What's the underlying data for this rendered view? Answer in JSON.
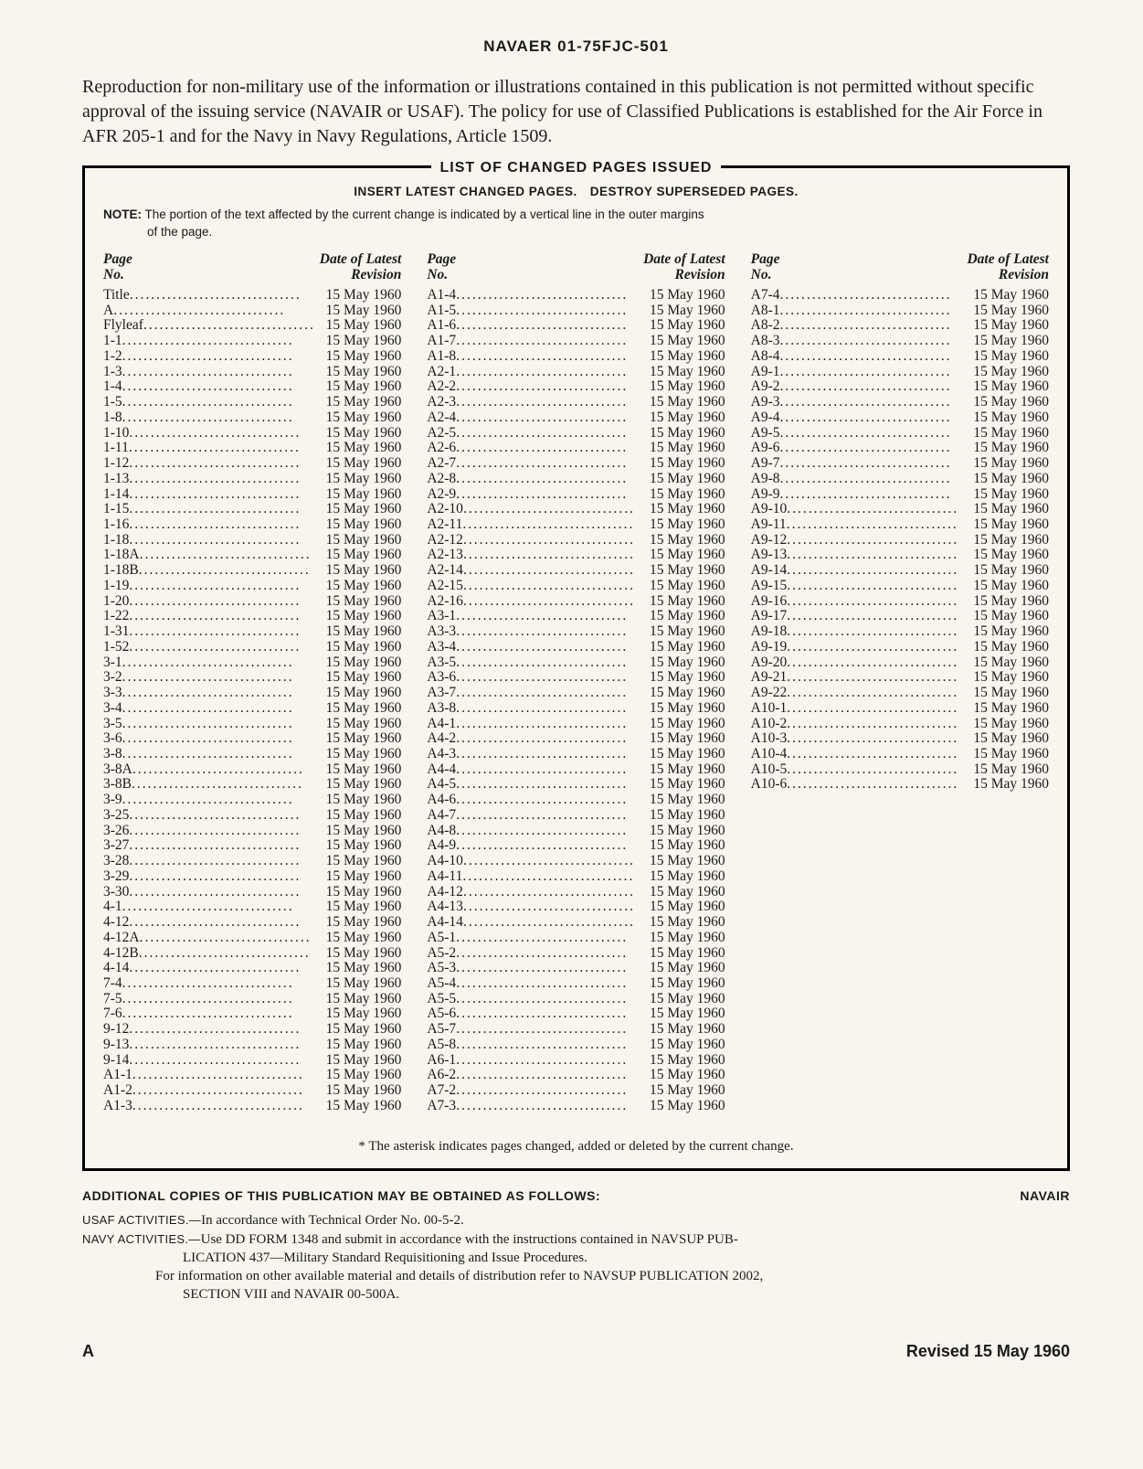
{
  "header": "NAVAER 01-75FJC-501",
  "intro": "Reproduction for non-military use of the information or illustrations contained in this publication is not permitted without specific approval of the issuing service (NAVAIR or USAF). The policy for use of Classified Publications is established for the Air Force in AFR 205-1 and for the Navy in Navy Regulations, Article 1509.",
  "box_title": "LIST OF CHANGED PAGES ISSUED",
  "insert_line": "INSERT LATEST CHANGED PAGES. DESTROY SUPERSEDED PAGES.",
  "note_label": "NOTE:",
  "note_text_1": "The portion of the text affected by the current change is indicated by a vertical line in the outer margins",
  "note_text_2": "of the page.",
  "col_head_left_1": "Page",
  "col_head_left_2": "No.",
  "col_head_right_1": "Date of Latest",
  "col_head_right_2": "Revision",
  "revision_date": "15 May 1960",
  "col1_pages": [
    "Title",
    "A",
    "Flyleaf",
    "1-1",
    "1-2",
    "1-3",
    "1-4",
    "1-5",
    "1-8",
    "1-10",
    "1-11",
    "1-12",
    "1-13",
    "1-14",
    "1-15",
    "1-16",
    "1-18",
    "1-18A",
    "1-18B",
    "1-19",
    "1-20",
    "1-22",
    "1-31",
    "1-52",
    "3-1",
    "3-2",
    "3-3",
    "3-4",
    "3-5",
    "3-6",
    "3-8",
    "3-8A",
    "3-8B",
    "3-9",
    "3-25",
    "3-26",
    "3-27",
    "3-28",
    "3-29",
    "3-30",
    "4-1",
    "4-12",
    "4-12A",
    "4-12B",
    "4-14",
    "7-4",
    "7-5",
    "7-6",
    "9-12",
    "9-13",
    "9-14",
    "A1-1",
    "A1-2",
    "A1-3"
  ],
  "col2_pages": [
    "A1-4",
    "A1-5",
    "A1-6",
    "A1-7",
    "A1-8",
    "A2-1",
    "A2-2",
    "A2-3",
    "A2-4",
    "A2-5",
    "A2-6",
    "A2-7",
    "A2-8",
    "A2-9",
    "A2-10",
    "A2-11",
    "A2-12",
    "A2-13",
    "A2-14",
    "A2-15",
    "A2-16",
    "A3-1",
    "A3-3",
    "A3-4",
    "A3-5",
    "A3-6",
    "A3-7",
    "A3-8",
    "A4-1",
    "A4-2",
    "A4-3",
    "A4-4",
    "A4-5",
    "A4-6",
    "A4-7",
    "A4-8",
    "A4-9",
    "A4-10",
    "A4-11",
    "A4-12",
    "A4-13",
    "A4-14",
    "A5-1",
    "A5-2",
    "A5-3",
    "A5-4",
    "A5-5",
    "A5-6",
    "A5-7",
    "A5-8",
    "A6-1",
    "A6-2",
    "A7-2",
    "A7-3"
  ],
  "col3_pages": [
    "A7-4",
    "A8-1",
    "A8-2",
    "A8-3",
    "A8-4",
    "A9-1",
    "A9-2",
    "A9-3",
    "A9-4",
    "A9-5",
    "A9-6",
    "A9-7",
    "A9-8",
    "A9-9",
    "A9-10",
    "A9-11",
    "A9-12",
    "A9-13",
    "A9-14",
    "A9-15",
    "A9-16",
    "A9-17",
    "A9-18",
    "A9-19",
    "A9-20",
    "A9-21",
    "A9-22",
    "A10-1",
    "A10-2",
    "A10-3",
    "A10-4",
    "A10-5",
    "A10-6"
  ],
  "asterisk_note": "* The asterisk indicates pages changed, added or deleted by the current change.",
  "addl_heading": "ADDITIONAL COPIES OF THIS PUBLICATION MAY BE OBTAINED AS FOLLOWS:",
  "addl_right": "NAVAIR",
  "usaf_label": "USAF ACTIVITIES.—",
  "usaf_text": "In accordance with Technical Order No. 00-5-2.",
  "navy_label": "NAVY ACTIVITIES.—",
  "navy_text_1": "Use DD FORM 1348 and submit in accordance with the instructions contained in NAVSUP PUB-",
  "navy_text_2": "LICATION 437—Military Standard Requisitioning and Issue Procedures.",
  "navy_text_3": "For information on other available material and details of distribution refer to NAVSUP PUBLICATION 2002,",
  "navy_text_4": "SECTION VIII and NAVAIR 00-500A.",
  "footer_left": "A",
  "footer_right": "Revised 15 May 1960",
  "colors": {
    "page_bg": "#f8f5ee",
    "text": "#1a1a1a",
    "border": "#000000"
  },
  "typography": {
    "body_font": "Times New Roman",
    "label_font": "Arial",
    "body_size_pt": 12,
    "small_size_pt": 10
  }
}
